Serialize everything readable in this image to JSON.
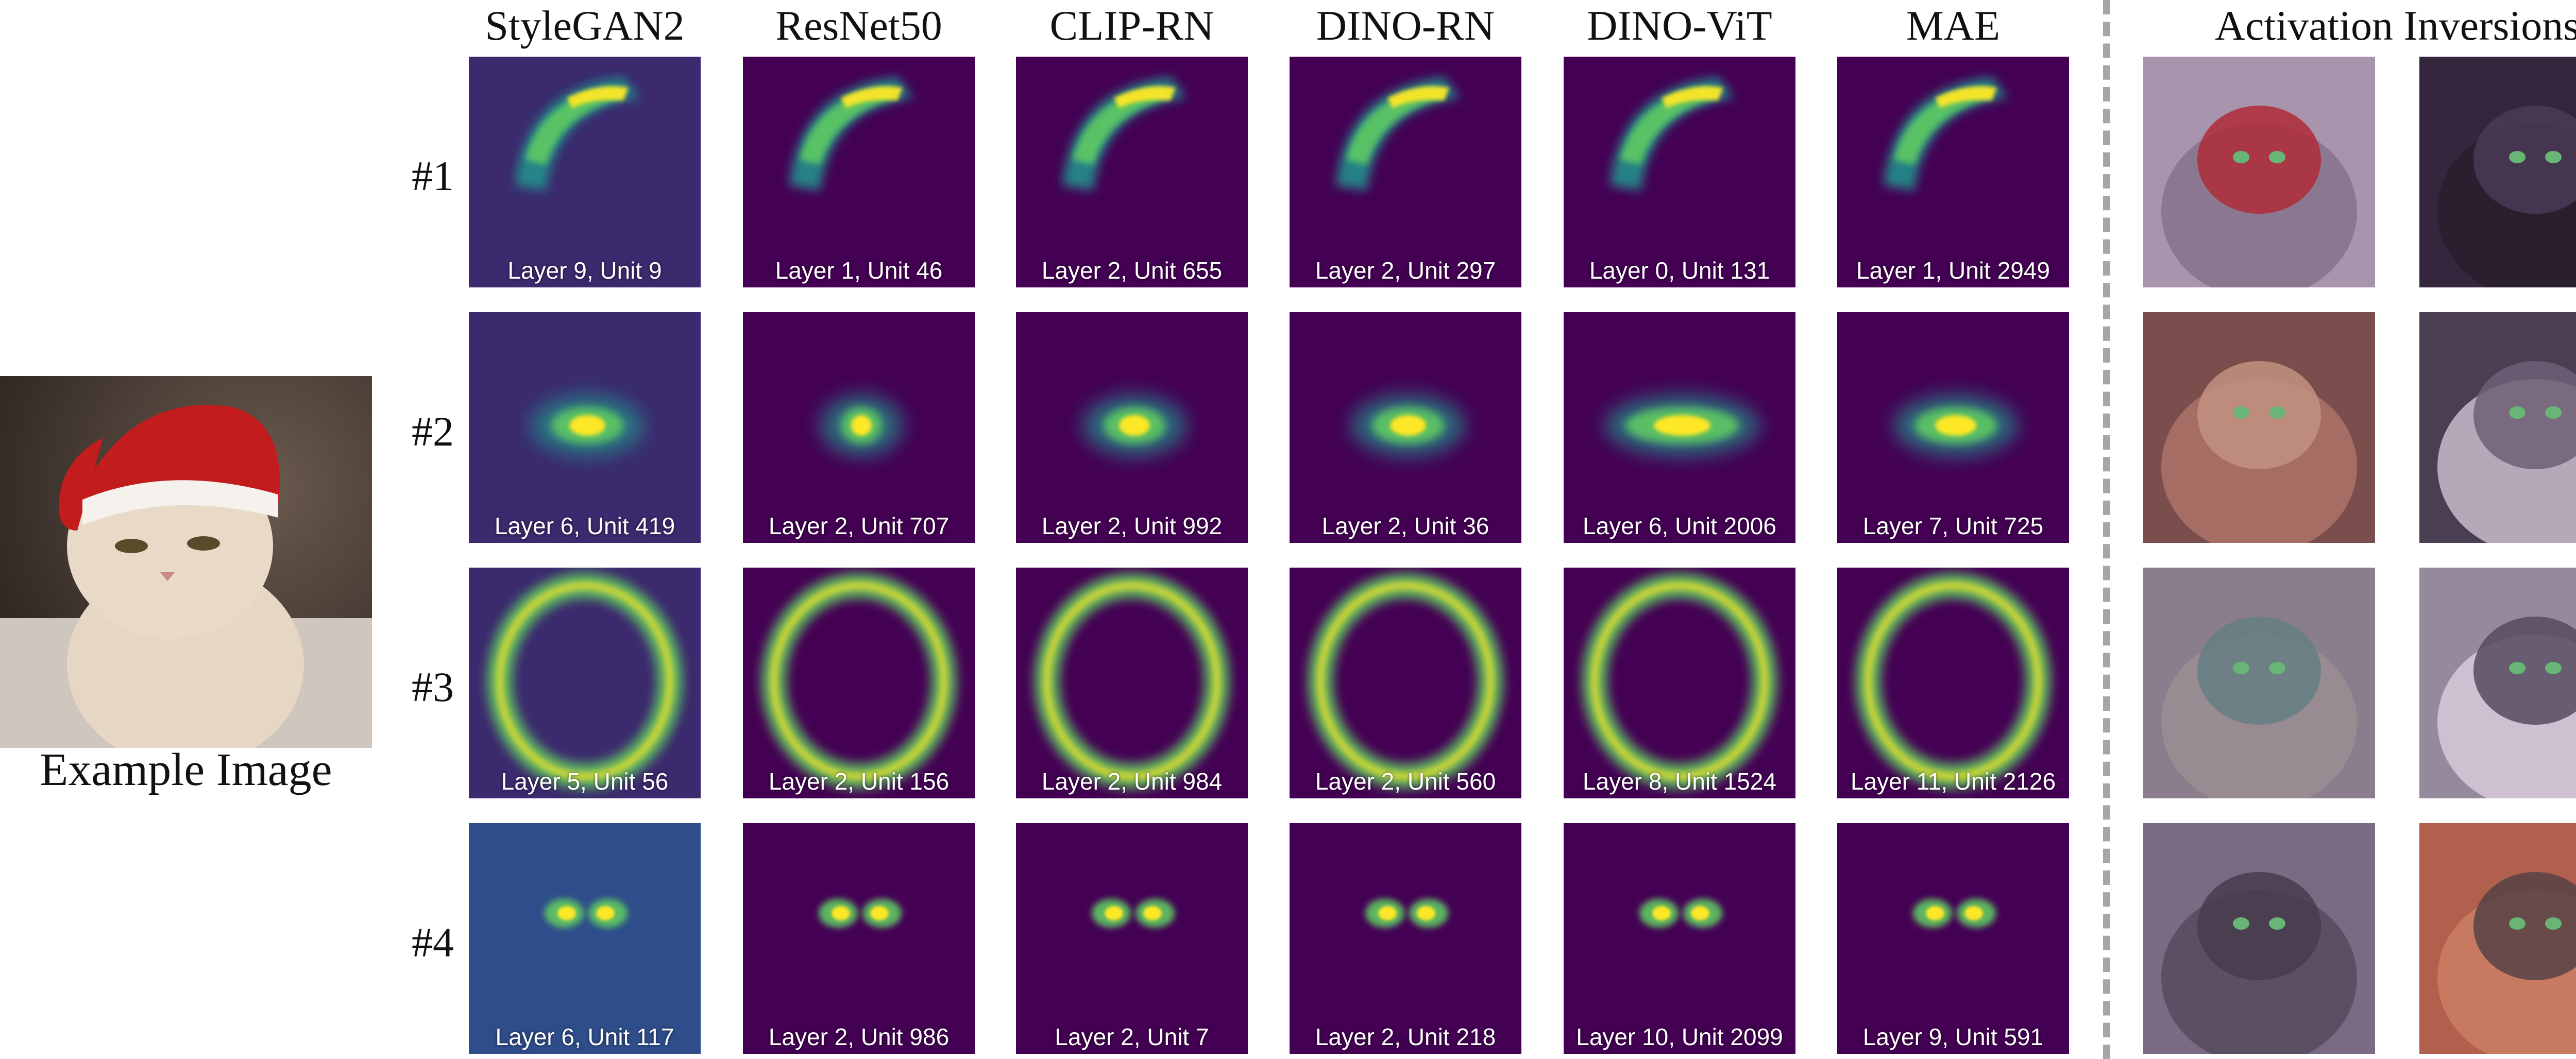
{
  "example": {
    "caption": "Example Image",
    "image_icon": "cat-in-santa-hat"
  },
  "columns": [
    "StyleGAN2",
    "ResNet50",
    "CLIP-RN",
    "DINO-RN",
    "DINO-ViT",
    "MAE",
    "Activation Inversions"
  ],
  "rows": [
    {
      "label": "#1",
      "tiles": [
        "Layer 9, Unit 9",
        "Layer 1, Unit 46",
        "Layer 2, Unit 655",
        "Layer 2, Unit 297",
        "Layer 0, Unit 131",
        "Layer 1, Unit 2949"
      ],
      "inversions": [
        "cat-with-santa-hat",
        "two-black-cats"
      ]
    },
    {
      "label": "#2",
      "tiles": [
        "Layer 6, Unit 419",
        "Layer 2, Unit 707",
        "Layer 2, Unit 992",
        "Layer 2, Unit 36",
        "Layer 6, Unit 2006",
        "Layer 7, Unit 725"
      ],
      "inversions": [
        "orange-cat-indoors",
        "black-white-cat"
      ]
    },
    {
      "label": "#3",
      "tiles": [
        "Layer 5, Unit 56",
        "Layer 2, Unit 156",
        "Layer 2, Unit 984",
        "Layer 2, Unit 560",
        "Layer 8, Unit 1524",
        "Layer 11, Unit 2126"
      ],
      "inversions": [
        "tabby-cat-standing",
        "black-white-cat-sitting"
      ]
    },
    {
      "label": "#4",
      "tiles": [
        "Layer 6, Unit 117",
        "Layer 2, Unit 986",
        "Layer 2, Unit 7",
        "Layer 2, Unit 218",
        "Layer 10, Unit 2099",
        "Layer 9, Unit 591"
      ],
      "inversions": [
        "grey-cat-green-eyes",
        "orange-cat-green-eyes"
      ]
    }
  ],
  "colors": {
    "heatmap_low": "#440154",
    "heatmap_mid": "#21918c",
    "heatmap_high": "#fde725",
    "divider": "#a6a6a6"
  }
}
